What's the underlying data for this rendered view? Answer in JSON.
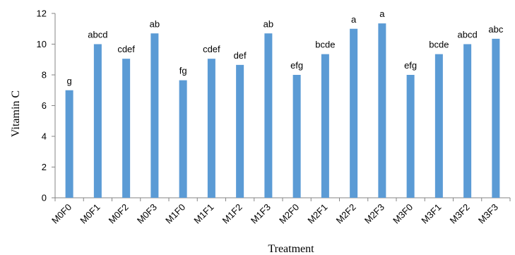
{
  "chart_data": {
    "type": "bar",
    "categories": [
      "M0F0",
      "M0F1",
      "M0F2",
      "M0F3",
      "M1F0",
      "M1F1",
      "M1F2",
      "M1F3",
      "M2F0",
      "M2F1",
      "M2F2",
      "M2F3",
      "M3F0",
      "M3F1",
      "M3F2",
      "M3F3"
    ],
    "values": [
      7.0,
      10.0,
      9.05,
      10.7,
      7.65,
      9.05,
      8.65,
      10.7,
      8.0,
      9.35,
      11.0,
      11.35,
      8.0,
      9.35,
      10.0,
      10.35
    ],
    "labels": [
      "g",
      "abcd",
      "cdef",
      "ab",
      "fg",
      "cdef",
      "def",
      "ab",
      "efg",
      "bcde",
      "a",
      "a",
      "efg",
      "bcde",
      "abcd",
      "abc"
    ],
    "xlabel": "Treatment",
    "ylabel": "Vitamin C",
    "ylim": [
      0,
      12
    ],
    "yticks": [
      "0",
      "2",
      "4",
      "6",
      "8",
      "10",
      "12"
    ],
    "grid": false,
    "legend": "none",
    "bar_color": "#5B9BD5",
    "axis_color": "#868686"
  }
}
